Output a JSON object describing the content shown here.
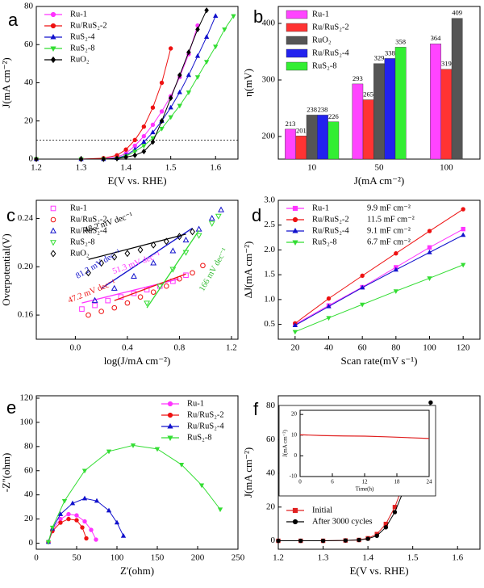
{
  "chart_data": [
    {
      "type": "line",
      "panel_label": "a",
      "xlabel": "E(V vs. RHE)",
      "ylabel": "J(mA cm⁻²)",
      "xlim": [
        1.2,
        1.65
      ],
      "xticks": [
        1.2,
        1.3,
        1.4,
        1.5,
        1.6
      ],
      "ylim": [
        0,
        80
      ],
      "yticks": [
        0,
        20,
        40,
        60,
        80
      ],
      "hline": 10,
      "legend": "upper left",
      "x": [
        1.2,
        1.3,
        1.35,
        1.38,
        1.4,
        1.42,
        1.44,
        1.46,
        1.48,
        1.5,
        1.52,
        1.54,
        1.56,
        1.58,
        1.6,
        1.62,
        1.64
      ],
      "series": [
        {
          "name": "Ru-1",
          "color": "#ff33ff",
          "marker": "circle",
          "values": [
            0,
            0,
            0.2,
            1,
            3,
            7,
            12,
            18,
            25,
            33,
            43,
            55,
            70,
            null,
            null,
            null,
            null
          ]
        },
        {
          "name": "Ru/RuS₂-2",
          "color": "#ee1111",
          "marker": "circle",
          "values": [
            0,
            0,
            0.5,
            2,
            5,
            10,
            17,
            27,
            40,
            58,
            null,
            null,
            null,
            null,
            null,
            null,
            null
          ]
        },
        {
          "name": "RuS₂-4",
          "color": "#1111cc",
          "marker": "triangle",
          "values": [
            0,
            0,
            0,
            0.5,
            2,
            5,
            9,
            14,
            20,
            27,
            35,
            44,
            54,
            64,
            75,
            null,
            null
          ]
        },
        {
          "name": "RuS₂-8",
          "color": "#33dd33",
          "marker": "triangle-down",
          "values": [
            0,
            0,
            0,
            0.3,
            1.5,
            4,
            7,
            11,
            16,
            22,
            28,
            35,
            43,
            51,
            59,
            68,
            75
          ]
        },
        {
          "name": "RuO₂",
          "color": "#000000",
          "marker": "diamond",
          "values": [
            0,
            0,
            0,
            0.3,
            1,
            2,
            4,
            9,
            20,
            32,
            44,
            56,
            68,
            78,
            null,
            null,
            null
          ]
        }
      ]
    },
    {
      "type": "bar",
      "panel_label": "b",
      "xlabel": "J(mA cm⁻²)",
      "ylabel": "η(mV)",
      "categories": [
        "10",
        "50",
        "100"
      ],
      "ylim": [
        160,
        430
      ],
      "yticks": [
        200,
        300,
        400
      ],
      "legend": "upper left",
      "series": [
        {
          "name": "Ru-1",
          "color": "#ff44ff",
          "values": [
            213,
            293,
            364
          ]
        },
        {
          "name": "Ru/RuS₂-2",
          "color": "#ff3333",
          "values": [
            201,
            265,
            319
          ]
        },
        {
          "name": "RuO₂",
          "color": "#555555",
          "values": [
            238,
            329,
            409
          ]
        },
        {
          "name": "Ru/RuS₂-4",
          "color": "#2222ee",
          "values": [
            238,
            338,
            null
          ]
        },
        {
          "name": "RuS₂-8",
          "color": "#33ee33",
          "values": [
            226,
            358,
            null
          ]
        }
      ]
    },
    {
      "type": "scatter",
      "panel_label": "c",
      "xlabel": "log(J/mA cm⁻²)",
      "ylabel": "Overpotential(V)",
      "xlim": [
        -0.3,
        1.25
      ],
      "xticks": [
        {
          "value": 0,
          "label": "0.0"
        },
        0.4,
        0.8,
        1.2
      ],
      "ylim": [
        0.14,
        0.255
      ],
      "yticks": [
        0.16,
        {
          "value": 0.2,
          "label": "0.20"
        },
        0.24
      ],
      "legend": "upper left",
      "open": true,
      "series": [
        {
          "name": "Ru-1",
          "color": "#ff33ff",
          "marker": "square",
          "x": [
            0.05,
            0.15,
            0.25,
            0.35,
            0.45,
            0.55,
            0.65,
            0.75,
            0.85
          ],
          "values": [
            0.165,
            0.168,
            0.172,
            0.175,
            0.178,
            0.181,
            0.184,
            0.188,
            0.193
          ],
          "fit": {
            "x": [
              0.05,
              0.8
            ],
            "y": [
              0.17,
              0.19
            ]
          }
        },
        {
          "name": "Ru/RuS₂-2",
          "color": "#ee1111",
          "marker": "circle",
          "x": [
            0.1,
            0.2,
            0.3,
            0.4,
            0.5,
            0.6,
            0.7,
            0.8,
            0.9,
            0.98
          ],
          "values": [
            0.16,
            0.163,
            0.166,
            0.17,
            0.175,
            0.179,
            0.184,
            0.19,
            0.195,
            0.201
          ],
          "fit": {
            "x": [
              0.3,
              0.85
            ],
            "y": [
              0.172,
              0.194
            ]
          }
        },
        {
          "name": "Ru/RuS₂-4",
          "color": "#1111cc",
          "marker": "triangle",
          "x": [
            0.15,
            0.3,
            0.45,
            0.6,
            0.75,
            0.85,
            0.95,
            1.05,
            1.12
          ],
          "values": [
            0.172,
            0.182,
            0.192,
            0.203,
            0.213,
            0.222,
            0.231,
            0.24,
            0.247
          ],
          "fit": {
            "x": [
              0.2,
              0.9
            ],
            "y": [
              0.182,
              0.232
            ]
          }
        },
        {
          "name": "RuS₂-8",
          "color": "#33dd33",
          "marker": "triangle-down",
          "x": [
            0.55,
            0.65,
            0.75,
            0.85,
            0.95,
            1.05,
            1.1
          ],
          "values": [
            0.17,
            0.184,
            0.198,
            0.212,
            0.226,
            0.236,
            0.242
          ],
          "fit": {
            "x": [
              0.55,
              0.95
            ],
            "y": [
              0.166,
              0.23
            ]
          }
        },
        {
          "name": "RuO₂",
          "color": "#000000",
          "marker": "diamond",
          "x": [
            0.1,
            0.2,
            0.3,
            0.4,
            0.5,
            0.6,
            0.7,
            0.8,
            0.9
          ],
          "values": [
            0.195,
            0.203,
            0.208,
            0.211,
            0.214,
            0.218,
            0.221,
            0.225,
            0.229
          ],
          "fit": {
            "x": [
              0.1,
              0.85
            ],
            "y": [
              0.206,
              0.227
            ]
          }
        }
      ],
      "annotations": [
        {
          "text": "48.2 mV dec⁻¹",
          "color": "#000000"
        },
        {
          "text": "81.2 mV dec⁻¹",
          "color": "#1111cc"
        },
        {
          "text": "51.3 mV dec⁻¹",
          "color": "#ff33ff"
        },
        {
          "text": "47.2 mV dec⁻¹",
          "color": "#ee1111"
        },
        {
          "text": "166 mV dec⁻¹",
          "color": "#33bb33"
        }
      ]
    },
    {
      "type": "line",
      "panel_label": "d",
      "xlabel": "Scan rate(mV s⁻¹)",
      "ylabel": "ΔJ(mA cm⁻²)",
      "xlim": [
        10,
        130
      ],
      "xticks": [
        20,
        40,
        60,
        80,
        100,
        120
      ],
      "ylim": [
        0.2,
        3.0
      ],
      "yticks": [
        0.5,
        {
          "value": 1,
          "label": "1.0"
        },
        1.5,
        {
          "value": 2,
          "label": "2.0"
        },
        2.5,
        {
          "value": 3,
          "label": "3.0"
        }
      ],
      "legend": "upper left",
      "x": [
        20,
        40,
        60,
        80,
        100,
        120
      ],
      "series": [
        {
          "name": "Ru-1",
          "note": "9.9 mF cm⁻²",
          "color": "#ff33ff",
          "marker": "square",
          "values": [
            0.5,
            0.88,
            1.25,
            1.65,
            2.05,
            2.42
          ]
        },
        {
          "name": "Ru/RuS₂-2",
          "note": "11.5 mF cm⁻²",
          "color": "#ee1111",
          "marker": "circle",
          "values": [
            0.52,
            1.02,
            1.48,
            1.93,
            2.38,
            2.82
          ]
        },
        {
          "name": "Ru/RuS₂-4",
          "note": "9.1 mF cm⁻²",
          "color": "#1111cc",
          "marker": "triangle",
          "values": [
            0.48,
            0.86,
            1.24,
            1.6,
            1.95,
            2.3
          ]
        },
        {
          "name": "RuS₂-8",
          "note": "6.7 mF cm⁻²",
          "color": "#33dd33",
          "marker": "triangle-down",
          "values": [
            0.35,
            0.63,
            0.9,
            1.17,
            1.43,
            1.7
          ]
        }
      ]
    },
    {
      "type": "line",
      "panel_label": "e",
      "xlabel": "Z'(ohm)",
      "ylabel": "-Z''(ohm)",
      "xlim": [
        0,
        250
      ],
      "xticks": [
        0,
        50,
        100,
        150,
        200,
        250
      ],
      "ylim": [
        -5,
        122
      ],
      "yticks": [
        0,
        20,
        40,
        60,
        80,
        100,
        120
      ],
      "legend": "upper right",
      "series": [
        {
          "name": "Ru-1",
          "color": "#ff33ff",
          "marker": "circle",
          "x": [
            15,
            20,
            30,
            40,
            50,
            60,
            68,
            74
          ],
          "values": [
            1,
            11,
            20,
            24,
            23,
            18,
            11,
            3
          ]
        },
        {
          "name": "Ru/RuS₂-2",
          "color": "#ee1111",
          "marker": "circle",
          "x": [
            15,
            20,
            30,
            40,
            50,
            57,
            62
          ],
          "values": [
            1,
            10,
            17,
            20,
            19,
            13,
            4
          ]
        },
        {
          "name": "Ru/RuS₂-4",
          "color": "#1111cc",
          "marker": "triangle",
          "x": [
            15,
            20,
            30,
            45,
            60,
            75,
            90,
            100,
            108
          ],
          "values": [
            1,
            12,
            24,
            33,
            37,
            35,
            27,
            17,
            6
          ]
        },
        {
          "name": "RuS₂-8",
          "color": "#33dd33",
          "marker": "triangle-down",
          "x": [
            15,
            20,
            35,
            60,
            90,
            120,
            150,
            180,
            205,
            228
          ],
          "values": [
            1,
            13,
            35,
            60,
            76,
            81,
            78,
            65,
            48,
            28
          ]
        }
      ]
    },
    {
      "type": "line",
      "panel_label": "f",
      "xlabel": "E(V vs. RHE)",
      "ylabel": "J(mA cm⁻²)",
      "xlim": [
        1.2,
        1.65
      ],
      "xticks": [
        1.2,
        1.3,
        1.4,
        1.5,
        1.6
      ],
      "ylim": [
        -5,
        86
      ],
      "yticks": [
        0,
        20,
        40,
        60,
        80
      ],
      "legend": "lower left",
      "x": [
        1.2,
        1.25,
        1.3,
        1.35,
        1.38,
        1.4,
        1.42,
        1.44,
        1.46,
        1.48,
        1.5,
        1.52,
        1.54
      ],
      "series": [
        {
          "name": "Initial",
          "color": "#e02020",
          "marker": "square",
          "values": [
            0,
            0,
            0,
            0.2,
            0.5,
            1.5,
            4,
            10,
            20,
            34,
            52,
            70,
            null
          ]
        },
        {
          "name": "After 3000 cycles",
          "color": "#000000",
          "marker": "circle",
          "values": [
            0,
            0,
            0,
            0.2,
            0.5,
            1.2,
            3,
            8,
            17,
            30,
            47,
            64,
            82
          ]
        }
      ]
    },
    {
      "type": "line",
      "xlabel": "Time(h)",
      "ylabel": "J(mA cm⁻²)",
      "xlim": [
        0,
        24
      ],
      "xticks": [
        0,
        6,
        12,
        18,
        24
      ],
      "ylim": [
        -10,
        22
      ],
      "yticks": [
        -10,
        0,
        10,
        20
      ],
      "x": [
        0,
        4,
        8,
        12,
        16,
        20,
        24
      ],
      "series": [
        {
          "color": "#e02020",
          "values": [
            10.2,
            9.8,
            9.6,
            9.5,
            9.2,
            8.8,
            8.4
          ]
        }
      ]
    }
  ]
}
